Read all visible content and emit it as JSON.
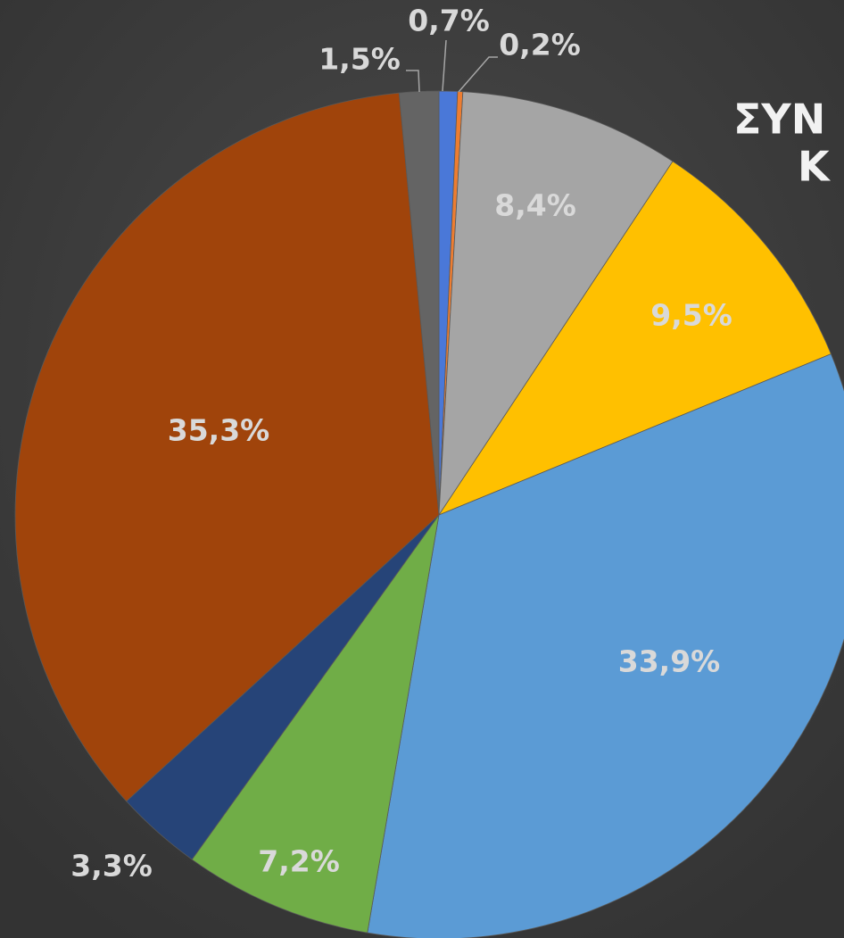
{
  "chart_data": {
    "type": "pie",
    "title_lines": [
      "ΣΥΝ",
      "Κ"
    ],
    "values": [
      0.7,
      0.2,
      8.4,
      9.5,
      33.9,
      7.2,
      3.3,
      35.3,
      1.5
    ],
    "value_labels": [
      "0,7%",
      "0,2%",
      "8,4%",
      "9,5%",
      "33,9%",
      "7,2%",
      "3,3%",
      "35,3%",
      "1,5%"
    ],
    "colors": [
      "#4a78d8",
      "#ed7d31",
      "#a5a5a5",
      "#ffc000",
      "#5b9bd5",
      "#70ad47",
      "#264478",
      "#a0440b",
      "#646464"
    ]
  }
}
